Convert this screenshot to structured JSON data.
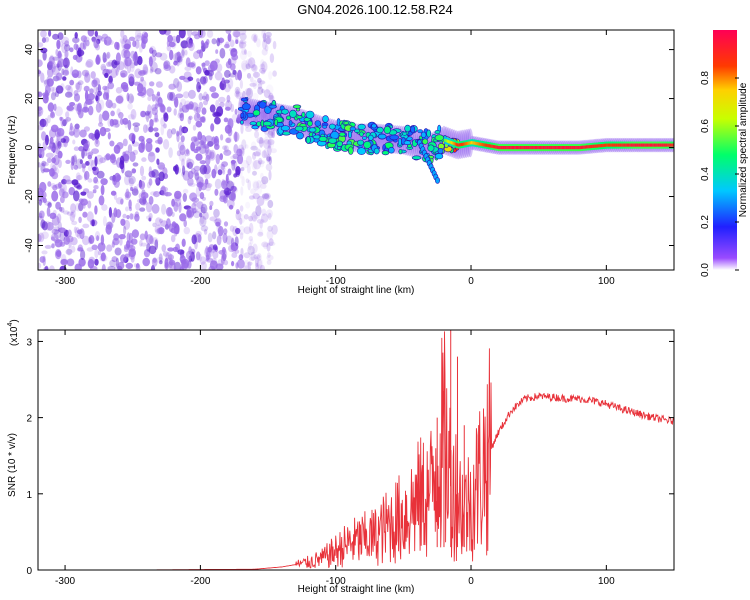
{
  "title": "GN04.2026.100.12.58.R24",
  "colors": {
    "line": "#e8323a",
    "axis": "#000000",
    "scatter": "#7a3fd6"
  },
  "chart_data": [
    {
      "type": "heatmap",
      "name": "spectrogram",
      "xlabel": "Height of straight line (km)",
      "ylabel": "Frequency (Hz)",
      "xlim": [
        -320,
        150
      ],
      "ylim": [
        -50,
        48
      ],
      "xticks": [
        -300,
        -200,
        -100,
        0,
        100
      ],
      "yticks": [
        -40,
        -20,
        0,
        20,
        40
      ],
      "colorbar": {
        "label": "Normalized spectral amplitude",
        "range": [
          0,
          1
        ],
        "ticks": [
          "0.0",
          "0.2",
          "0.4",
          "0.6",
          "0.8"
        ],
        "tick_values": [
          0,
          0.2,
          0.4,
          0.6,
          0.8
        ]
      },
      "noise_region_km": [
        -320,
        -155
      ],
      "signal_track": {
        "x": [
          -170,
          -150,
          -130,
          -110,
          -90,
          -70,
          -50,
          -30,
          -20,
          -10,
          0,
          20,
          50,
          80,
          100,
          120,
          140,
          150
        ],
        "freq": [
          15,
          13,
          11,
          7,
          4,
          4,
          3,
          0,
          3,
          1,
          2,
          0,
          0,
          0,
          1,
          1,
          1,
          1
        ],
        "amplitude": [
          0.4,
          0.45,
          0.5,
          0.45,
          0.5,
          0.45,
          0.45,
          0.5,
          0.55,
          0.9,
          0.75,
          0.95,
          0.95,
          0.95,
          0.85,
          0.95,
          0.95,
          0.9
        ]
      }
    },
    {
      "type": "line",
      "name": "snr",
      "xlabel": "Height of straight line (km)",
      "ylabel": "SNR (10 * v/v)",
      "scale_label": "(x10",
      "scale_exponent": "4",
      "scale": 10000,
      "xlim": [
        -320,
        150
      ],
      "ylim": [
        0,
        3.15
      ],
      "xticks": [
        -300,
        -200,
        -100,
        0,
        100
      ],
      "yticks": [
        0,
        1,
        2,
        3
      ],
      "series": [
        {
          "name": "SNR",
          "x": [
            -320,
            -250,
            -160,
            -140,
            -120,
            -110,
            -100,
            -90,
            -80,
            -70,
            -60,
            -50,
            -40,
            -30,
            -25,
            -20,
            -15,
            -10,
            -5,
            0,
            10,
            20,
            30,
            40,
            50,
            60,
            70,
            80,
            90,
            100,
            110,
            120,
            130,
            140,
            150
          ],
          "y": [
            0.0,
            0.0,
            0.01,
            0.04,
            0.1,
            0.15,
            0.25,
            0.35,
            0.4,
            0.45,
            0.6,
            0.7,
            0.9,
            1.0,
            1.5,
            1.7,
            1.2,
            1.0,
            0.8,
            0.9,
            1.4,
            1.8,
            2.1,
            2.25,
            2.28,
            2.27,
            2.25,
            2.25,
            2.22,
            2.18,
            2.12,
            2.07,
            2.02,
            1.98,
            1.95
          ],
          "spikes": {
            "x": [
              -15,
              -10,
              -20,
              -25,
              -5
            ],
            "y": [
              3.15,
              2.8,
              2.35,
              2.0,
              1.9
            ]
          }
        }
      ]
    }
  ]
}
